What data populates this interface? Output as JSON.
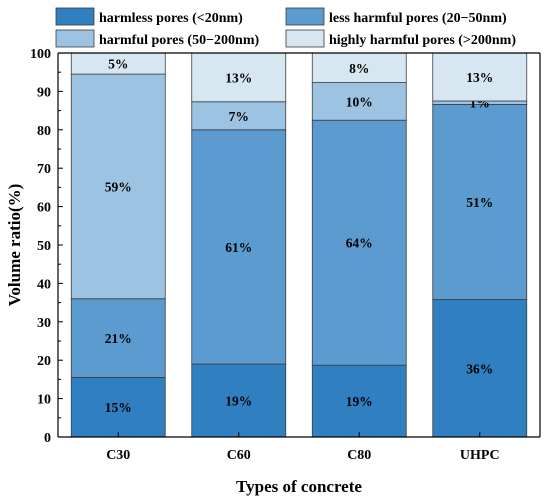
{
  "chart_data": {
    "type": "bar",
    "stacked": true,
    "categories": [
      "C30",
      "C60",
      "C80",
      "UHPC"
    ],
    "series": [
      {
        "name": "harmless pores (<20nm)",
        "color": "#2f7fc1",
        "values": [
          15.5,
          19,
          18.7,
          35.8
        ],
        "labels": [
          "15%",
          "19%",
          "19%",
          "36%"
        ]
      },
      {
        "name": "less harmful pores (20−50nm)",
        "color": "#5b9bd0",
        "values": [
          20.5,
          61,
          63.8,
          50.8
        ],
        "labels": [
          "21%",
          "61%",
          "64%",
          "51%"
        ]
      },
      {
        "name": "harmful pores (50−200nm)",
        "color": "#9dc3e2",
        "values": [
          58.5,
          7.3,
          9.8,
          0.9
        ],
        "labels": [
          "59%",
          "7%",
          "10%",
          "1%"
        ]
      },
      {
        "name": "highly harmful pores (>200nm)",
        "color": "#d7e7f1",
        "values": [
          5.5,
          12.7,
          7.7,
          12.5
        ],
        "labels": [
          "5%",
          "13%",
          "8%",
          "13%"
        ]
      }
    ],
    "xlabel": "Types of concrete",
    "ylabel": "Volume ratio(%)",
    "ylim": [
      0,
      100
    ],
    "yticks": [
      "0",
      "10",
      "20",
      "30",
      "40",
      "50",
      "60",
      "70",
      "80",
      "90",
      "100"
    ],
    "legend_position": "top",
    "grid": false
  }
}
